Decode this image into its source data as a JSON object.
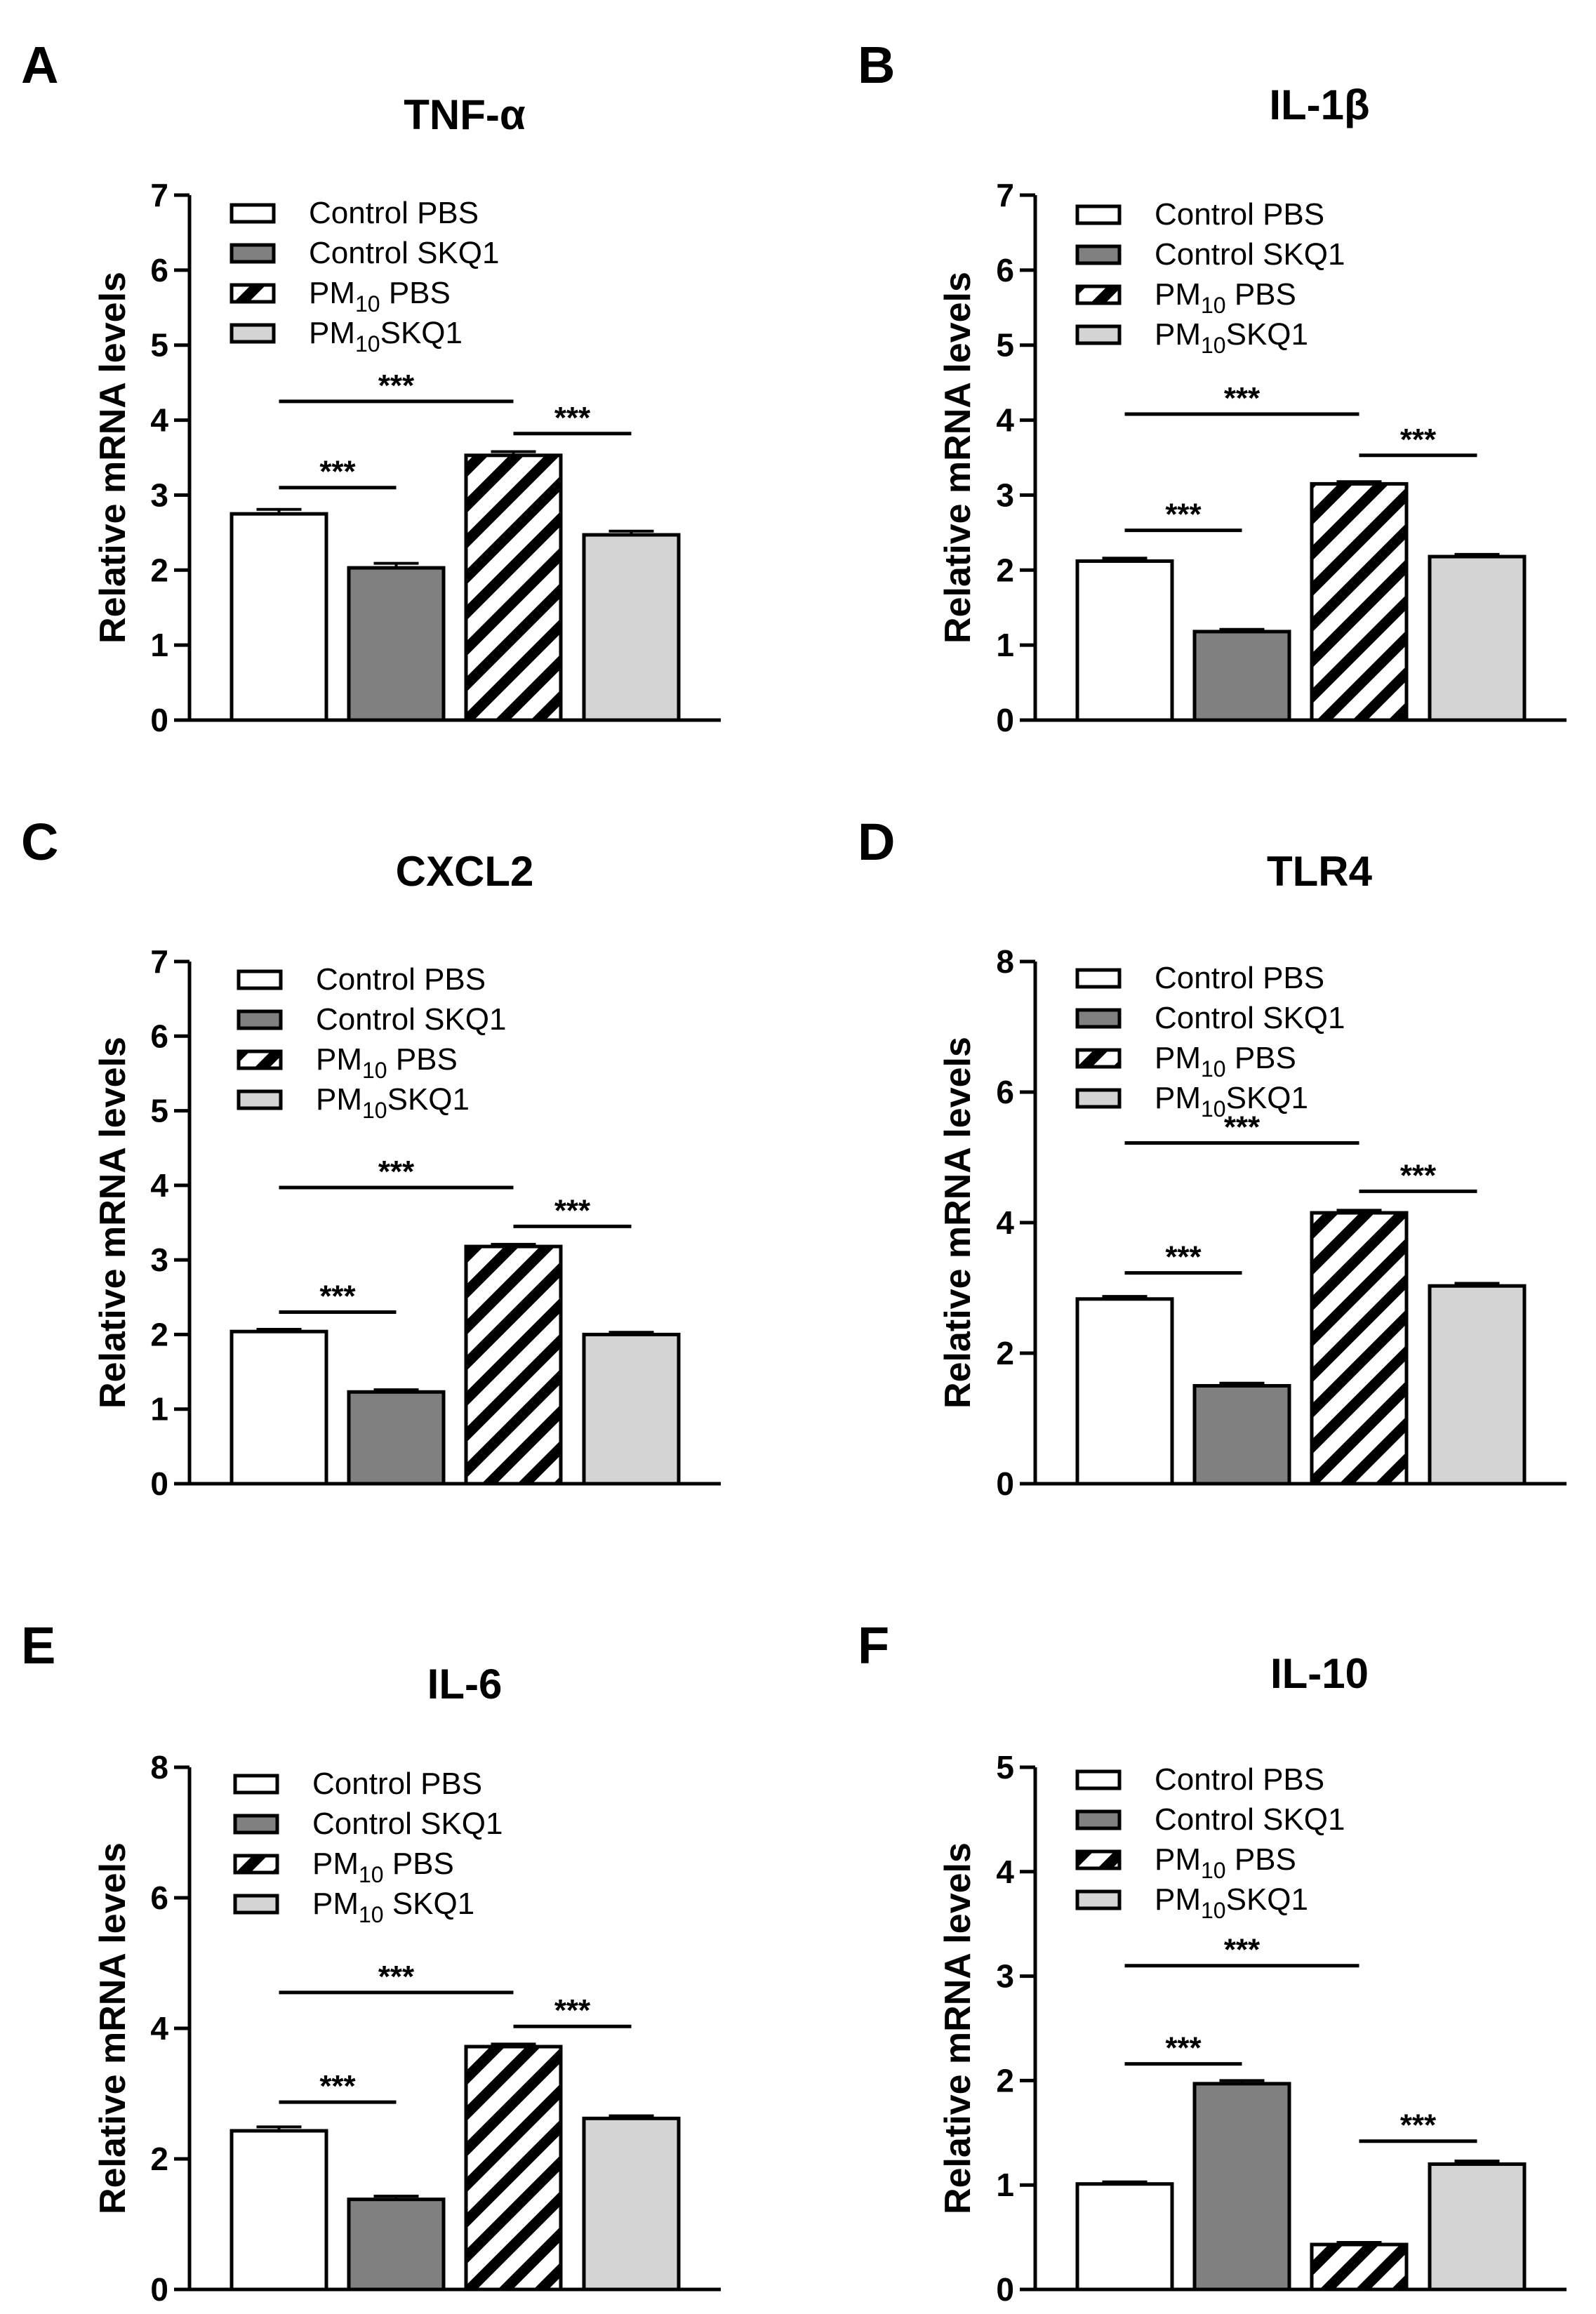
{
  "chart_data": [
    {
      "type": "bar",
      "panel": "A",
      "title": "TNF-α",
      "ylabel": "Relative mRNA levels",
      "ylim": [
        0,
        7
      ],
      "yticks": [
        0,
        1,
        2,
        3,
        4,
        5,
        6,
        7
      ],
      "categories": [
        "Control PBS",
        "Control SKQ1",
        "PM10 PBS",
        "PM10SKQ1"
      ],
      "values": [
        2.75,
        2.03,
        3.53,
        2.47
      ],
      "errors": [
        0.06,
        0.06,
        0.05,
        0.05
      ],
      "legend": [
        {
          "base": "Control PBS",
          "sub": "",
          "tail": ""
        },
        {
          "base": "Control SKQ1",
          "sub": "",
          "tail": ""
        },
        {
          "base": "PM",
          "sub": "10",
          "tail": " PBS"
        },
        {
          "base": "PM",
          "sub": "10",
          "tail": "SKQ1"
        }
      ],
      "significance": [
        {
          "from": 0,
          "to": 1,
          "y": 3.1,
          "label": "***"
        },
        {
          "from": 0,
          "to": 2,
          "y": 4.25,
          "label": "***"
        },
        {
          "from": 2,
          "to": 3,
          "y": 3.82,
          "label": "***"
        }
      ]
    },
    {
      "type": "bar",
      "panel": "B",
      "title": "IL-1β",
      "ylabel": "Relative mRNA levels",
      "ylim": [
        0,
        7
      ],
      "yticks": [
        0,
        1,
        2,
        3,
        4,
        5,
        6,
        7
      ],
      "categories": [
        "Control PBS",
        "Control SKQ1",
        "PM10 PBS",
        "PM10SKQ1"
      ],
      "values": [
        2.12,
        1.18,
        3.15,
        2.18
      ],
      "errors": [
        0.04,
        0.03,
        0.03,
        0.03
      ],
      "legend": [
        {
          "base": "Control PBS",
          "sub": "",
          "tail": ""
        },
        {
          "base": "Control SKQ1",
          "sub": "",
          "tail": ""
        },
        {
          "base": "PM",
          "sub": "10",
          "tail": " PBS"
        },
        {
          "base": "PM",
          "sub": "10",
          "tail": "SKQ1"
        }
      ],
      "significance": [
        {
          "from": 0,
          "to": 1,
          "y": 2.53,
          "label": "***"
        },
        {
          "from": 0,
          "to": 2,
          "y": 4.08,
          "label": "***"
        },
        {
          "from": 2,
          "to": 3,
          "y": 3.53,
          "label": "***"
        }
      ]
    },
    {
      "type": "bar",
      "panel": "C",
      "title": "CXCL2",
      "ylabel": "Relative mRNA levels",
      "ylim": [
        0,
        7
      ],
      "yticks": [
        0,
        1,
        2,
        3,
        4,
        5,
        6,
        7
      ],
      "categories": [
        "Control PBS",
        "Control SKQ1",
        "PM10 PBS",
        "PM10SKQ1"
      ],
      "values": [
        2.04,
        1.23,
        3.18,
        2.0
      ],
      "errors": [
        0.03,
        0.03,
        0.03,
        0.03
      ],
      "legend": [
        {
          "base": "Control PBS",
          "sub": "",
          "tail": ""
        },
        {
          "base": "Control SKQ1",
          "sub": "",
          "tail": ""
        },
        {
          "base": "PM",
          "sub": "10",
          "tail": " PBS"
        },
        {
          "base": "PM",
          "sub": "10",
          "tail": "SKQ1"
        }
      ],
      "significance": [
        {
          "from": 0,
          "to": 1,
          "y": 2.3,
          "label": "***"
        },
        {
          "from": 0,
          "to": 2,
          "y": 3.97,
          "label": "***"
        },
        {
          "from": 2,
          "to": 3,
          "y": 3.45,
          "label": "***"
        }
      ]
    },
    {
      "type": "bar",
      "panel": "D",
      "title": "TLR4",
      "ylabel": "Relative mRNA levels",
      "ylim": [
        0,
        8
      ],
      "yticks": [
        0,
        2,
        4,
        6,
        8
      ],
      "categories": [
        "Control PBS",
        "Control SKQ1",
        "PM10 PBS",
        "PM10SKQ1"
      ],
      "values": [
        2.83,
        1.5,
        4.15,
        3.03
      ],
      "errors": [
        0.04,
        0.04,
        0.04,
        0.04
      ],
      "legend": [
        {
          "base": "Control PBS",
          "sub": "",
          "tail": ""
        },
        {
          "base": "Control SKQ1",
          "sub": "",
          "tail": ""
        },
        {
          "base": "PM",
          "sub": "10",
          "tail": " PBS"
        },
        {
          "base": "PM",
          "sub": "10",
          "tail": "SKQ1"
        }
      ],
      "significance": [
        {
          "from": 0,
          "to": 1,
          "y": 3.23,
          "label": "***"
        },
        {
          "from": 0,
          "to": 2,
          "y": 5.22,
          "label": "***"
        },
        {
          "from": 2,
          "to": 3,
          "y": 4.48,
          "label": "***"
        }
      ]
    },
    {
      "type": "bar",
      "panel": "E",
      "title": "IL-6",
      "ylabel": "Relative mRNA levels",
      "ylim": [
        0,
        8
      ],
      "yticks": [
        0,
        2,
        4,
        6,
        8
      ],
      "categories": [
        "Control PBS",
        "Control SKQ1",
        "PM10 PBS",
        "PM10 SKQ1"
      ],
      "values": [
        2.43,
        1.38,
        3.72,
        2.62
      ],
      "errors": [
        0.06,
        0.05,
        0.04,
        0.04
      ],
      "legend": [
        {
          "base": "Control PBS",
          "sub": "",
          "tail": ""
        },
        {
          "base": "Control SKQ1",
          "sub": "",
          "tail": ""
        },
        {
          "base": "PM",
          "sub": "10",
          "tail": " PBS"
        },
        {
          "base": "PM",
          "sub": "10",
          "tail": " SKQ1"
        }
      ],
      "significance": [
        {
          "from": 0,
          "to": 1,
          "y": 2.87,
          "label": "***"
        },
        {
          "from": 0,
          "to": 2,
          "y": 4.55,
          "label": "***"
        },
        {
          "from": 2,
          "to": 3,
          "y": 4.03,
          "label": "***"
        }
      ]
    },
    {
      "type": "bar",
      "panel": "F",
      "title": "IL-10",
      "ylabel": "Relative mRNA levels",
      "ylim": [
        0,
        5
      ],
      "yticks": [
        0,
        1,
        2,
        3,
        4,
        5
      ],
      "categories": [
        "Control PBS",
        "Control SKQ1",
        "PM10 PBS",
        "PM10SKQ1"
      ],
      "values": [
        1.01,
        1.97,
        0.43,
        1.2
      ],
      "errors": [
        0.02,
        0.03,
        0.02,
        0.03
      ],
      "legend": [
        {
          "base": "Control PBS",
          "sub": "",
          "tail": ""
        },
        {
          "base": "Control SKQ1",
          "sub": "",
          "tail": ""
        },
        {
          "base": "PM",
          "sub": "10",
          "tail": " PBS"
        },
        {
          "base": "PM",
          "sub": "10",
          "tail": "SKQ1"
        }
      ],
      "significance": [
        {
          "from": 0,
          "to": 1,
          "y": 2.16,
          "label": "***"
        },
        {
          "from": 0,
          "to": 2,
          "y": 3.1,
          "label": "***"
        },
        {
          "from": 2,
          "to": 3,
          "y": 1.42,
          "label": "***"
        }
      ]
    }
  ],
  "style": {
    "bar_fills": [
      "#ffffff",
      "#808080",
      "hatch",
      "#d4d4d4"
    ],
    "stroke": "#000000"
  }
}
